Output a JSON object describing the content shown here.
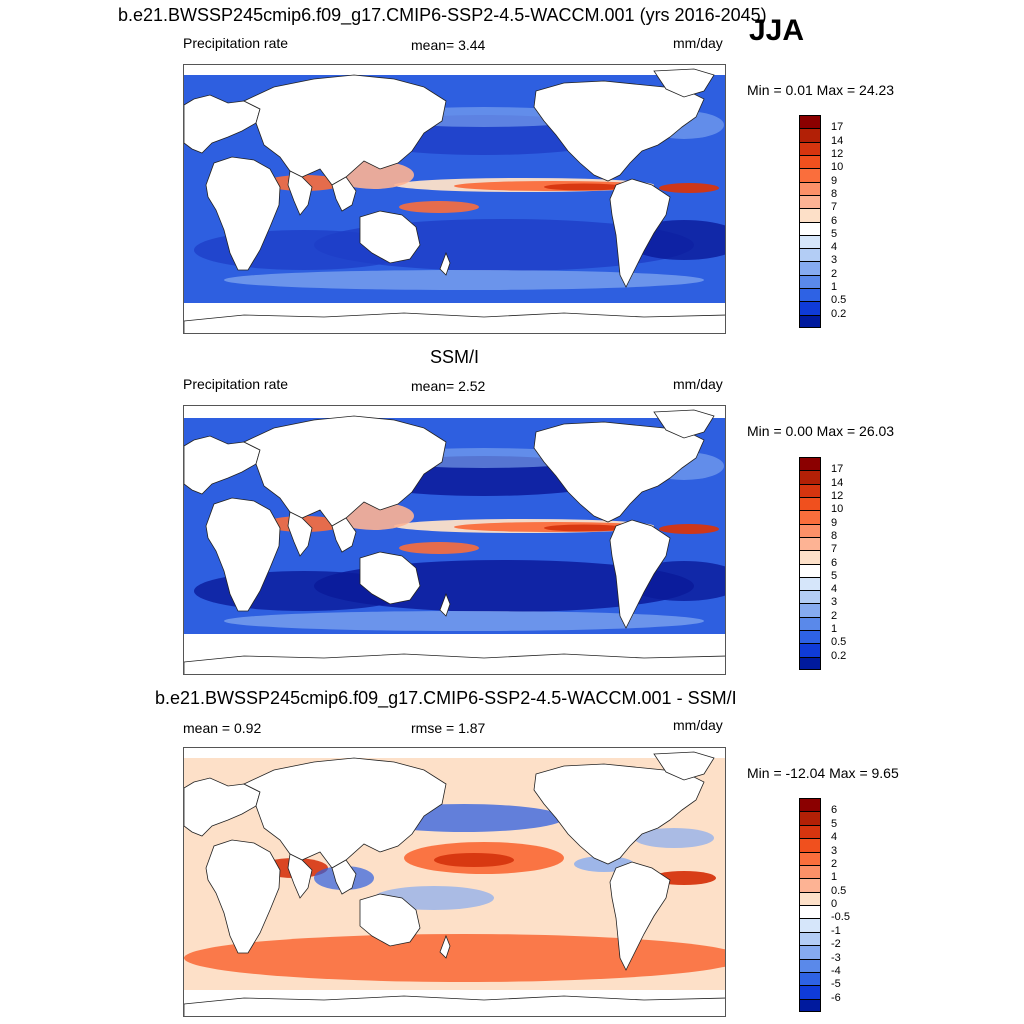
{
  "season": "JJA",
  "panels": [
    {
      "title": "b.e21.BWSSP245cmip6.f09_g17.CMIP6-SSP2-4.5-WACCM.001 (yrs 2016-2045)",
      "left_label": "Precipitation rate",
      "center_label": "mean=   3.44",
      "units": "mm/day",
      "minmax": "Min =   0.01 Max =  24.23",
      "map_name": "model-precip-map",
      "kind": "model"
    },
    {
      "title": "SSM/I",
      "left_label": "Precipitation rate",
      "center_label": "mean=   2.52",
      "units": "mm/day",
      "minmax": "Min =   0.00 Max =  26.03",
      "map_name": "obs-precip-map",
      "kind": "obs"
    },
    {
      "title": "b.e21.BWSSP245cmip6.f09_g17.CMIP6-SSP2-4.5-WACCM.001 - SSM/I",
      "left_label": "mean =   0.92",
      "center_label": "rmse =   1.87",
      "units": "mm/day",
      "minmax": "Min = -12.04 Max =   9.65",
      "map_name": "difference-map",
      "kind": "diff"
    }
  ],
  "colorbars": {
    "precip": {
      "ticks": [
        "17",
        "14",
        "12",
        "10",
        "9",
        "8",
        "7",
        "6",
        "5",
        "4",
        "3",
        "2",
        "1",
        "0.5",
        "0.2"
      ],
      "colors": [
        "#8b0000",
        "#b22006",
        "#d6350f",
        "#f0501e",
        "#fa6e3c",
        "#fc9068",
        "#fdb394",
        "#fde0c8",
        "#ffffff",
        "#d6e6fa",
        "#b3cdf5",
        "#86abf0",
        "#5a89ea",
        "#2e62e4",
        "#0f3bd8",
        "#001a9e"
      ]
    },
    "diff": {
      "ticks": [
        "6",
        "5",
        "4",
        "3",
        "2",
        "1",
        "0.5",
        "0",
        "-0.5",
        "-1",
        "-2",
        "-3",
        "-4",
        "-5",
        "-6"
      ],
      "colors": [
        "#8b0000",
        "#b22006",
        "#d6350f",
        "#f0501e",
        "#fa6e3c",
        "#fc9068",
        "#fdb394",
        "#fde0c8",
        "#ffffff",
        "#d6e6fa",
        "#b3cdf5",
        "#86abf0",
        "#5a89ea",
        "#2e62e4",
        "#0f3bd8",
        "#001a9e"
      ]
    }
  },
  "palette": {
    "ocean_blue": "#2e5fe0",
    "deep_blue": "#0a1a9a",
    "light_blue": "#86abf0",
    "rain_red": "#d6350f",
    "rain_orange": "#fa6e3c",
    "pale_orange": "#fdb394",
    "pale_peach": "#fde0c8"
  }
}
